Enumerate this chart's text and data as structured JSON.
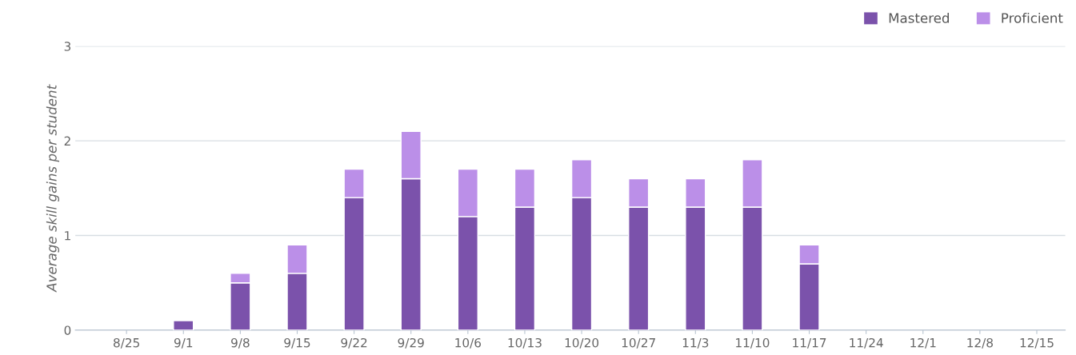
{
  "chart_data": {
    "type": "bar",
    "ylabel": "Average skill gains per student",
    "categories": [
      "8/25",
      "9/1",
      "9/8",
      "9/15",
      "9/22",
      "9/29",
      "10/6",
      "10/13",
      "10/20",
      "10/27",
      "11/3",
      "11/10",
      "11/17",
      "11/24",
      "12/1",
      "12/8",
      "12/15"
    ],
    "series": [
      {
        "name": "Mastered",
        "color": "#7b52ab",
        "values": [
          0,
          0.1,
          0.5,
          0.6,
          1.4,
          1.6,
          1.2,
          1.3,
          1.4,
          1.3,
          1.3,
          1.3,
          0.7,
          0,
          0,
          0,
          0
        ]
      },
      {
        "name": "Proficient",
        "color": "#bb8fe8",
        "values": [
          0,
          0,
          0.1,
          0.3,
          0.3,
          0.5,
          0.5,
          0.4,
          0.4,
          0.3,
          0.3,
          0.5,
          0.2,
          0,
          0,
          0,
          0
        ]
      }
    ],
    "stacked": true,
    "ylim": [
      0,
      3
    ],
    "yticks": [
      0,
      1,
      2,
      3
    ],
    "grid": "y",
    "legend": "top right"
  }
}
